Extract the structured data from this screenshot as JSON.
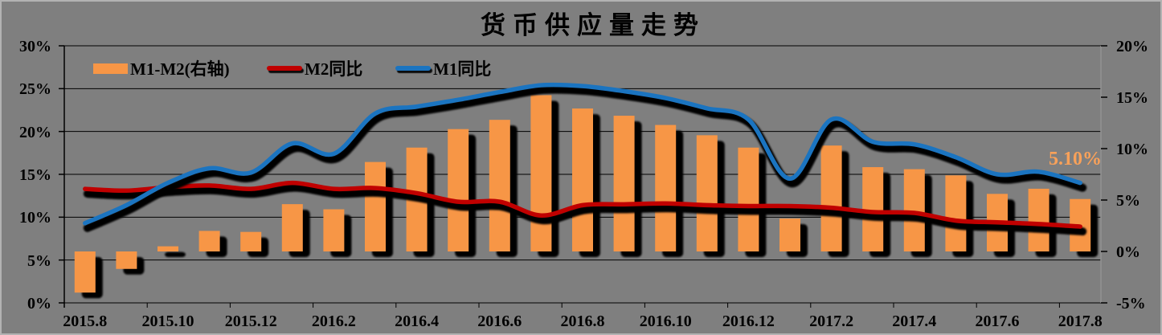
{
  "title": "货币供应量走势",
  "legend": {
    "items": [
      {
        "label": "M1-M2(右轴)",
        "swatch": "bar-swatch",
        "color": "#F79646"
      },
      {
        "label": "M2同比",
        "swatch": "line-swatch",
        "color": "#C00000"
      },
      {
        "label": "M1同比",
        "swatch": "line-swatch",
        "color": "#1B74C0"
      }
    ]
  },
  "annotation": {
    "text": "5.10%",
    "color": "#F9A159"
  },
  "left_axis": {
    "ticks": [
      "30%",
      "25%",
      "20%",
      "15%",
      "10%",
      "5%",
      "0%"
    ],
    "min": 0,
    "max": 30
  },
  "right_axis": {
    "ticks": [
      "20%",
      "15%",
      "10%",
      "5%",
      "0%",
      "-5%"
    ],
    "min": -5,
    "max": 20
  },
  "x_axis": {
    "labels": [
      "2015.8",
      "2015.10",
      "2015.12",
      "2016.2",
      "2016.4",
      "2016.6",
      "2016.8",
      "2016.10",
      "2016.12",
      "2017.2",
      "2017.4",
      "2017.6",
      "2017.8"
    ]
  },
  "colors": {
    "background": "#7F7F7F",
    "bar": "#F79646",
    "m2_line": "#C00000",
    "m1_line": "#1B74C0",
    "gridline": "#000000",
    "shadow": "#000000"
  },
  "chart_data": {
    "type": "combo",
    "title": "货币供应量走势",
    "categories": [
      "2015.8",
      "2015.9",
      "2015.10",
      "2015.11",
      "2015.12",
      "2016.1",
      "2016.2",
      "2016.3",
      "2016.4",
      "2016.5",
      "2016.6",
      "2016.7",
      "2016.8",
      "2016.9",
      "2016.10",
      "2016.11",
      "2016.12",
      "2017.1",
      "2017.2",
      "2017.3",
      "2017.4",
      "2017.5",
      "2017.6",
      "2017.7",
      "2017.8"
    ],
    "series": [
      {
        "name": "M1-M2(右轴)",
        "type": "bar",
        "axis": "right",
        "color": "#F79646",
        "values": [
          -4.0,
          -1.7,
          0.5,
          2.0,
          1.9,
          4.6,
          4.1,
          8.7,
          10.1,
          11.9,
          12.8,
          15.2,
          13.9,
          13.2,
          12.3,
          11.3,
          10.1,
          3.2,
          10.3,
          8.2,
          8.0,
          7.4,
          5.6,
          6.1,
          5.1
        ]
      },
      {
        "name": "M2同比",
        "type": "line",
        "axis": "left",
        "color": "#C00000",
        "values": [
          13.3,
          13.1,
          13.5,
          13.7,
          13.3,
          14.0,
          13.3,
          13.4,
          12.8,
          11.8,
          11.8,
          10.2,
          11.4,
          11.5,
          11.6,
          11.4,
          11.3,
          11.3,
          11.1,
          10.6,
          10.5,
          9.6,
          9.4,
          9.2,
          8.9
        ]
      },
      {
        "name": "M1同比",
        "type": "line",
        "axis": "left",
        "color": "#1B74C0",
        "values": [
          9.3,
          11.4,
          14.0,
          15.7,
          15.2,
          18.6,
          17.4,
          22.1,
          22.9,
          23.7,
          24.6,
          25.4,
          25.3,
          24.7,
          23.9,
          22.7,
          21.4,
          14.5,
          21.4,
          18.8,
          18.5,
          17.0,
          15.0,
          15.3,
          14.0
        ]
      }
    ],
    "left_ylim": [
      0,
      30
    ],
    "right_ylim": [
      -5,
      20
    ],
    "grid": true,
    "legend_position": "top-left",
    "annotation": {
      "text": "5.10%",
      "series": "M1-M2(右轴)",
      "category": "2017.8"
    },
    "smoothed_lines": true
  }
}
